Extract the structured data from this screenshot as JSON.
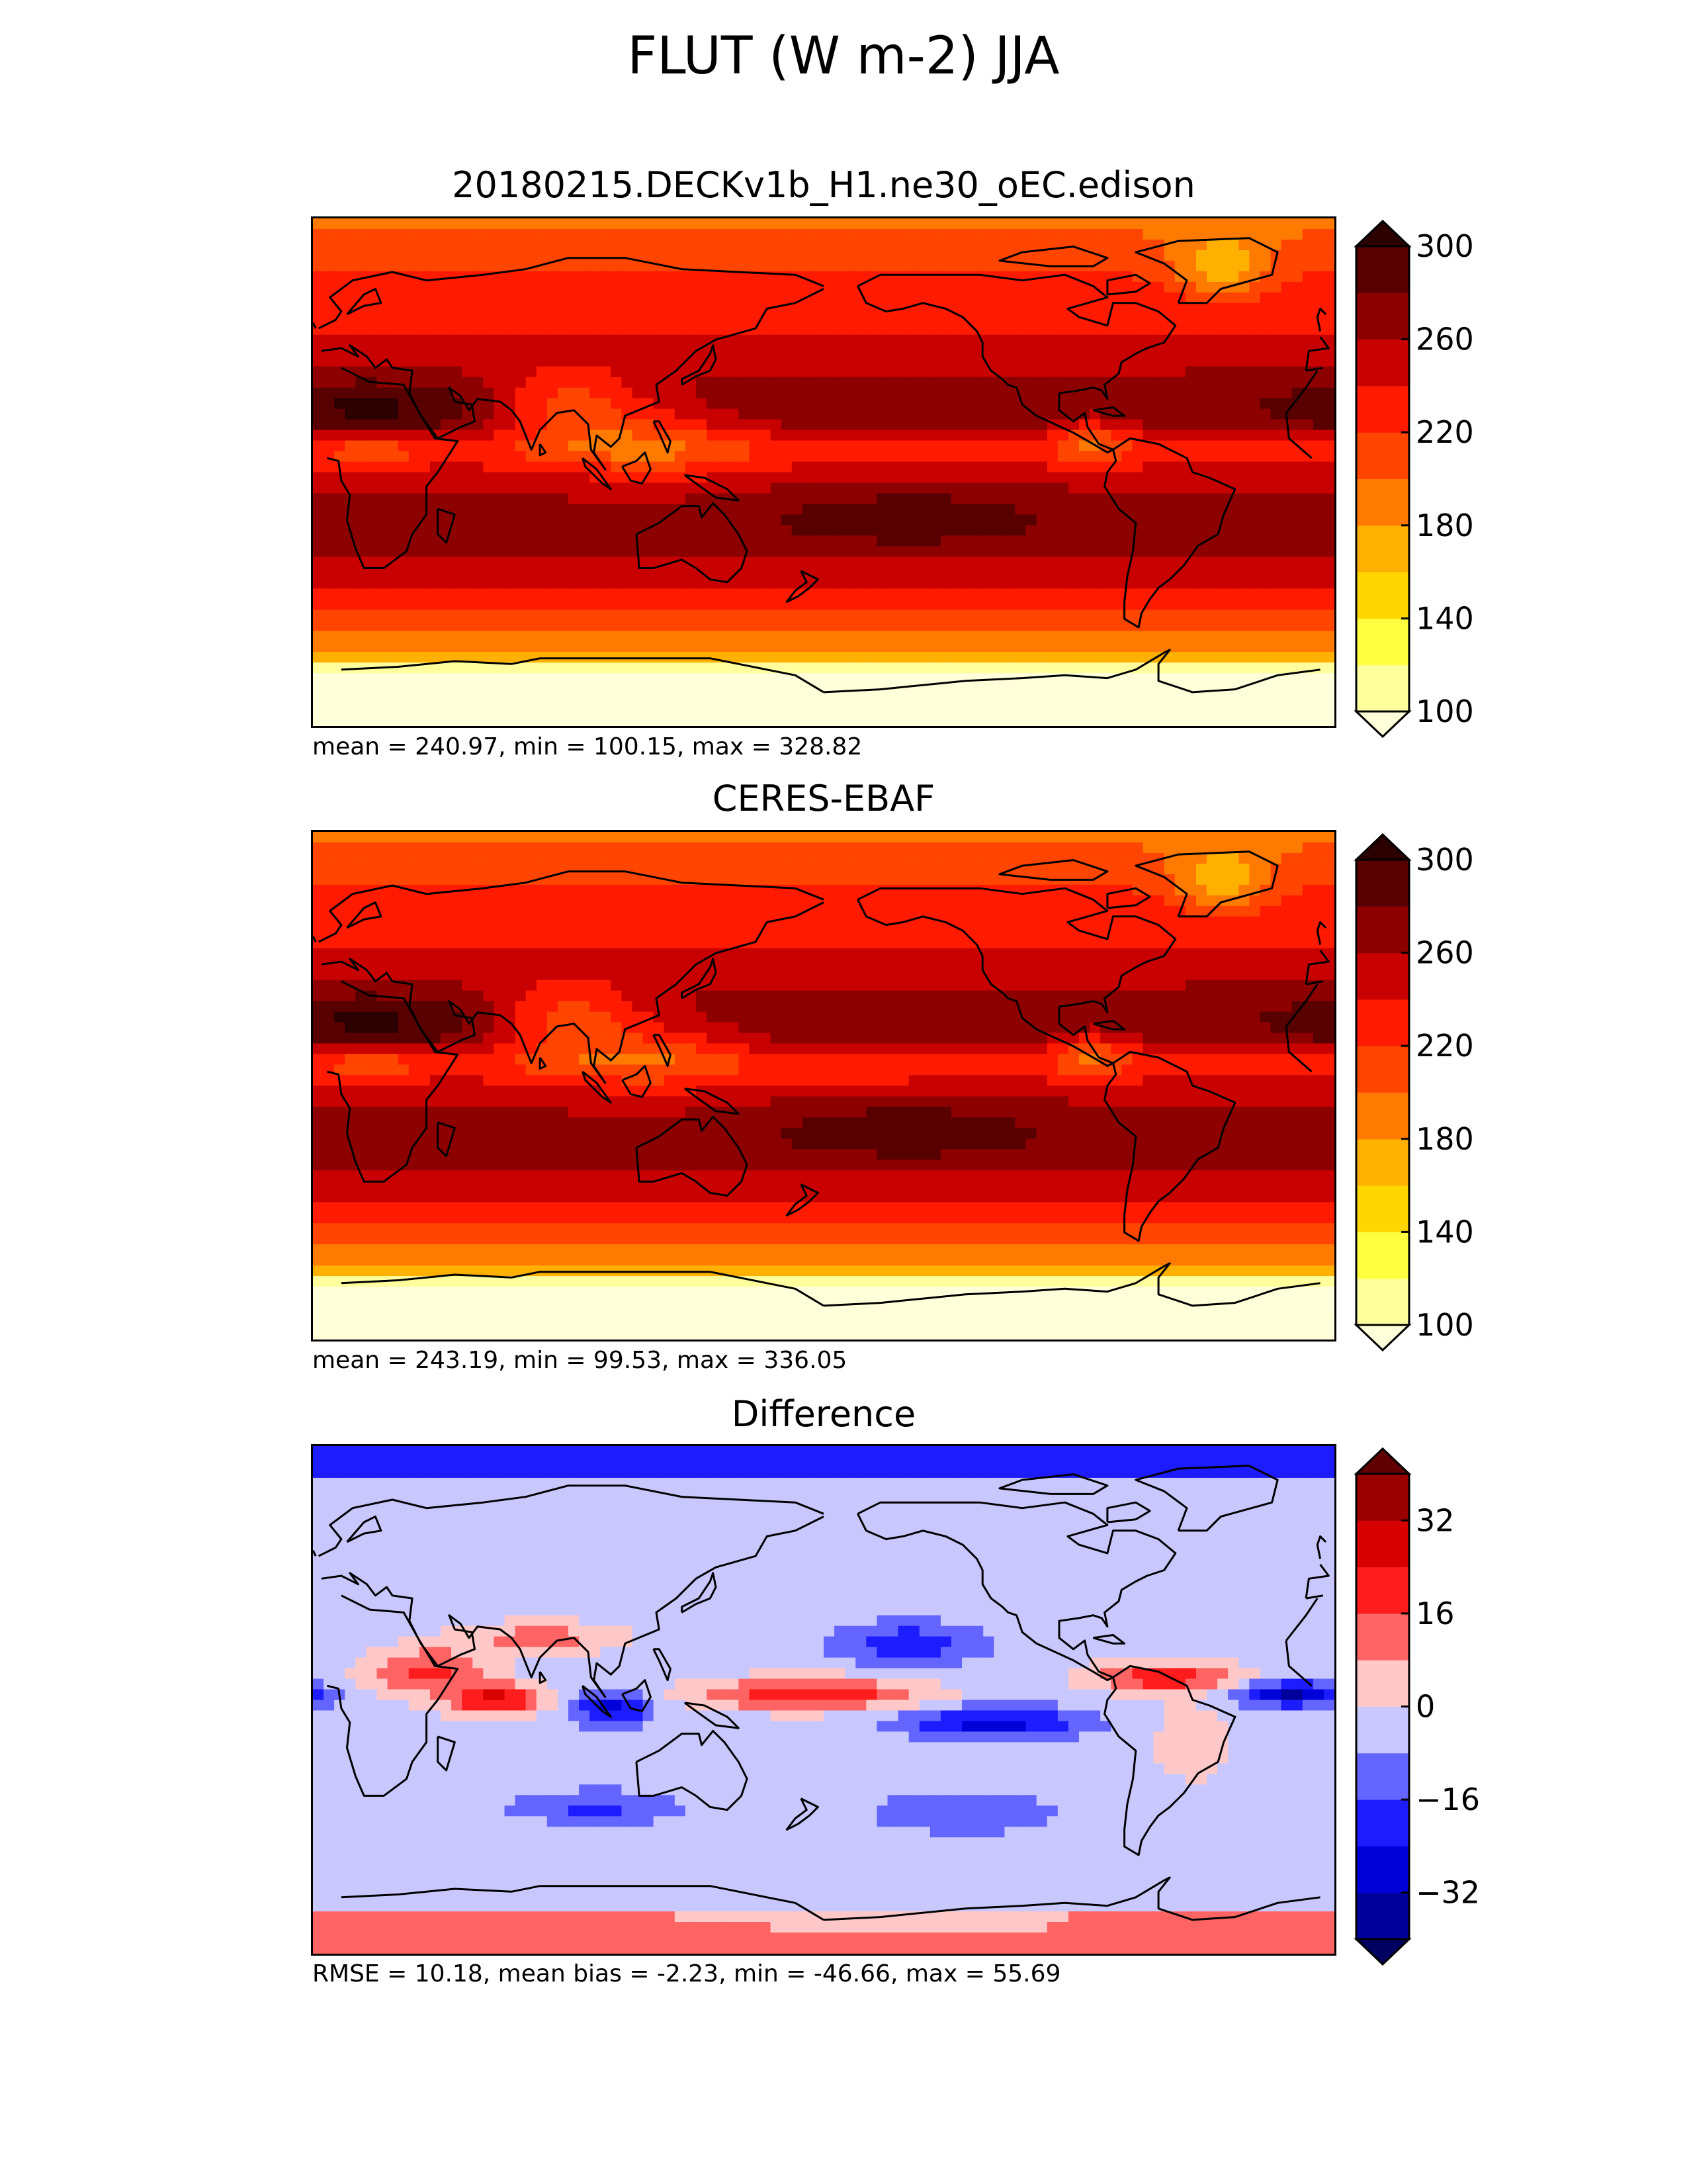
{
  "figure": {
    "title": "FLUT (W m-2) JJA"
  },
  "panels": [
    {
      "id": "test",
      "title": "20180215.DECKv1b_H1.ne30_oEC.edison",
      "stats": "mean = 240.97, min = 100.15, max = 328.82",
      "colormap": "hot",
      "colorbar": {
        "levels": [
          100,
          120,
          140,
          160,
          180,
          200,
          220,
          240,
          260,
          280,
          300
        ],
        "tick_labels": [
          "100",
          "140",
          "180",
          "220",
          "260",
          "300"
        ],
        "colors": [
          "#ffffd9",
          "#ffff9e",
          "#ffff3f",
          "#ffd700",
          "#ffb000",
          "#ff7a00",
          "#ff4500",
          "#ff1a00",
          "#c80000",
          "#8c0000",
          "#580000",
          "#2a0000"
        ],
        "extend": "both"
      }
    },
    {
      "id": "reference",
      "title": "CERES-EBAF",
      "stats": "mean = 243.19, min = 99.53, max = 336.05",
      "colormap": "hot",
      "colorbar": {
        "levels": [
          100,
          120,
          140,
          160,
          180,
          200,
          220,
          240,
          260,
          280,
          300
        ],
        "tick_labels": [
          "100",
          "140",
          "180",
          "220",
          "260",
          "300"
        ],
        "colors": [
          "#ffffd9",
          "#ffff9e",
          "#ffff3f",
          "#ffd700",
          "#ffb000",
          "#ff7a00",
          "#ff4500",
          "#ff1a00",
          "#c80000",
          "#8c0000",
          "#580000",
          "#2a0000"
        ],
        "extend": "both"
      }
    },
    {
      "id": "difference",
      "title": "Difference",
      "stats": "RMSE = 10.18, mean bias = -2.23, min = -46.66, max = 55.69",
      "colormap": "seismic",
      "colorbar": {
        "levels": [
          -40,
          -32,
          -24,
          -16,
          -8,
          0,
          8,
          16,
          24,
          32,
          40
        ],
        "tick_labels": [
          "−32",
          "−16",
          "0",
          "16",
          "32"
        ],
        "tick_values": [
          -32,
          -16,
          0,
          16,
          32
        ],
        "colors": [
          "#000060",
          "#00009a",
          "#0000d8",
          "#1c1cff",
          "#6464ff",
          "#c8c8ff",
          "#ffc8c8",
          "#ff6464",
          "#ff1c1c",
          "#d80000",
          "#9a0000",
          "#600000"
        ],
        "extend": "both"
      }
    }
  ]
}
